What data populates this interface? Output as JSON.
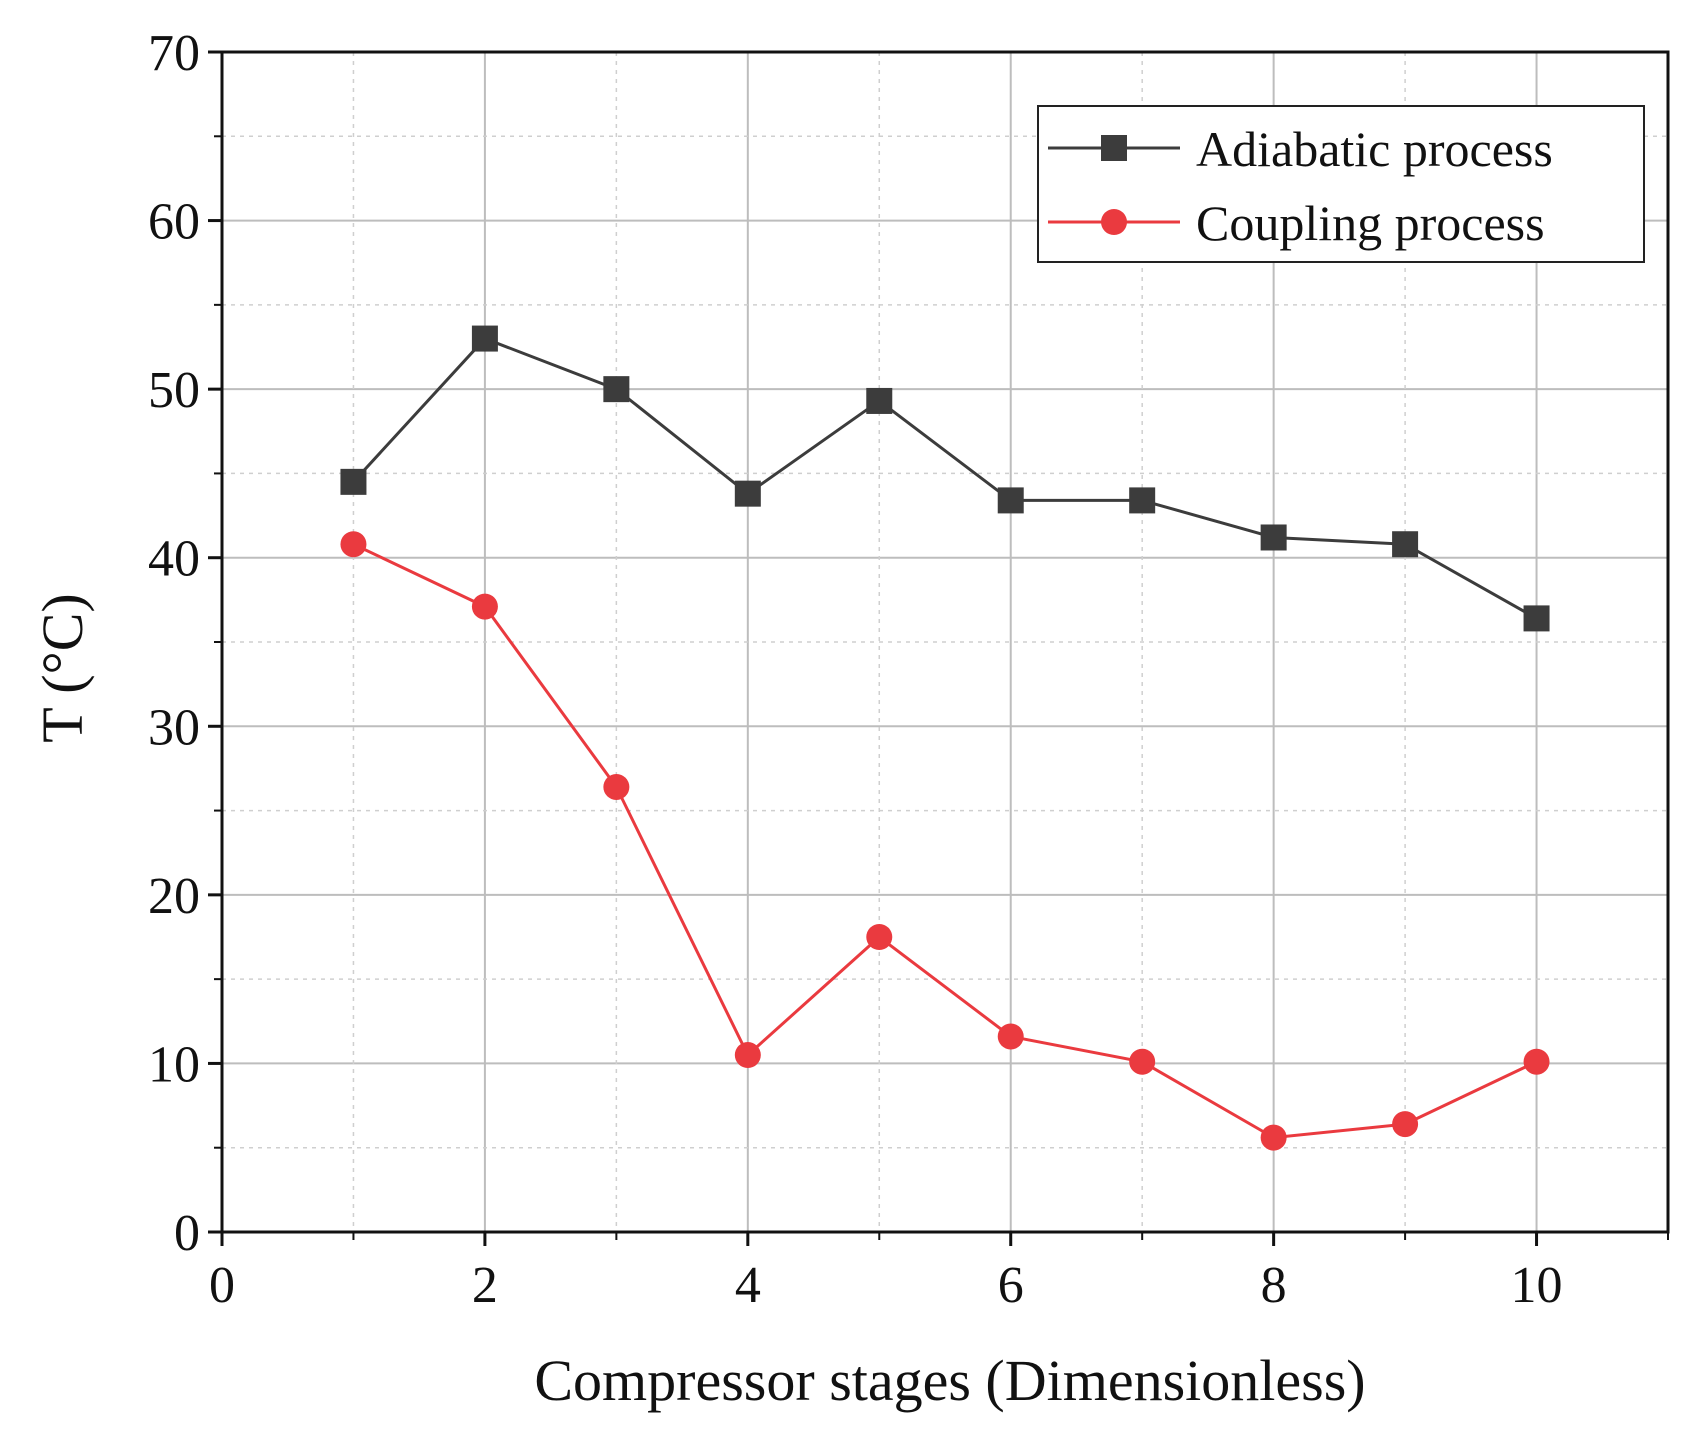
{
  "chart_data": {
    "type": "line",
    "title": "",
    "xlabel": "Compressor stages (Dimensionless)",
    "ylabel": "T (°C)",
    "xlim": [
      0,
      11
    ],
    "ylim": [
      0,
      70
    ],
    "x_ticks": [
      "0",
      "2",
      "4",
      "6",
      "8",
      "10"
    ],
    "y_ticks": [
      "0",
      "10",
      "20",
      "30",
      "40",
      "50",
      "60",
      "70"
    ],
    "x_tick_values": [
      0,
      2,
      4,
      6,
      8,
      10
    ],
    "y_tick_values": [
      0,
      10,
      20,
      30,
      40,
      50,
      60,
      70
    ],
    "x_minor_grid": [
      1,
      3,
      5,
      7,
      9,
      11
    ],
    "y_minor_grid": [
      5,
      15,
      25,
      35,
      45,
      55,
      65
    ],
    "grid": true,
    "legend_position": "top-right",
    "series": [
      {
        "name": "Adiabatic process",
        "color": "#3c3c3c",
        "marker": "square",
        "x": [
          1,
          2,
          3,
          4,
          5,
          6,
          7,
          8,
          9,
          10
        ],
        "values": [
          44.5,
          53.0,
          50.0,
          43.8,
          49.3,
          43.4,
          43.4,
          41.2,
          40.8,
          36.4
        ]
      },
      {
        "name": "Coupling process",
        "color": "#ea3a3f",
        "marker": "circle",
        "x": [
          1,
          2,
          3,
          4,
          5,
          6,
          7,
          8,
          9,
          10
        ],
        "values": [
          40.8,
          37.1,
          26.4,
          10.5,
          17.5,
          11.6,
          10.1,
          5.6,
          6.4,
          10.1
        ]
      }
    ]
  }
}
